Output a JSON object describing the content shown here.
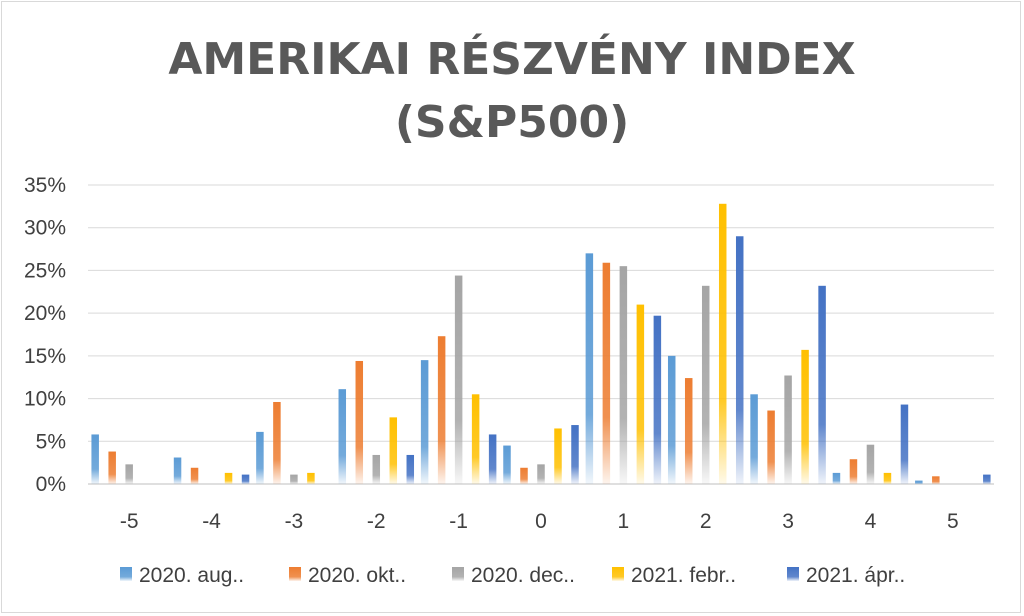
{
  "chart_data": {
    "type": "bar",
    "title_lines": [
      "AMERIKAI RÉSZVÉNY INDEX",
      "(S&P500)"
    ],
    "categories": [
      "-5",
      "-4",
      "-3",
      "-2",
      "-1",
      "0",
      "1",
      "2",
      "3",
      "4",
      "5"
    ],
    "ylim": [
      0,
      35
    ],
    "yticks": [
      "0%",
      "5%",
      "10%",
      "15%",
      "20%",
      "25%",
      "30%",
      "35%"
    ],
    "grid": true,
    "legend_position": "bottom",
    "series": [
      {
        "name": "2020. aug..",
        "color": "#5B9BD5",
        "values": [
          5.8,
          3.1,
          6.1,
          11.1,
          14.5,
          4.5,
          27.0,
          15.0,
          10.5,
          1.3,
          0.4
        ]
      },
      {
        "name": "2020. okt..",
        "color": "#ED7D31",
        "values": [
          3.8,
          1.9,
          9.6,
          14.4,
          17.3,
          1.9,
          25.9,
          12.4,
          8.6,
          2.9,
          0.9
        ]
      },
      {
        "name": "2020. dec..",
        "color": "#A5A5A5",
        "values": [
          2.3,
          0,
          1.1,
          3.4,
          24.4,
          2.3,
          25.5,
          23.2,
          12.7,
          4.6,
          0
        ]
      },
      {
        "name": "2021. febr..",
        "color": "#FFC000",
        "values": [
          0,
          1.3,
          1.3,
          7.8,
          10.5,
          6.5,
          21.0,
          32.8,
          15.7,
          1.3,
          0
        ]
      },
      {
        "name": "2021. ápr..",
        "color": "#4472C4",
        "values": [
          0,
          1.1,
          0,
          3.4,
          5.8,
          6.9,
          19.7,
          29.0,
          23.2,
          9.3,
          1.1
        ]
      }
    ]
  }
}
